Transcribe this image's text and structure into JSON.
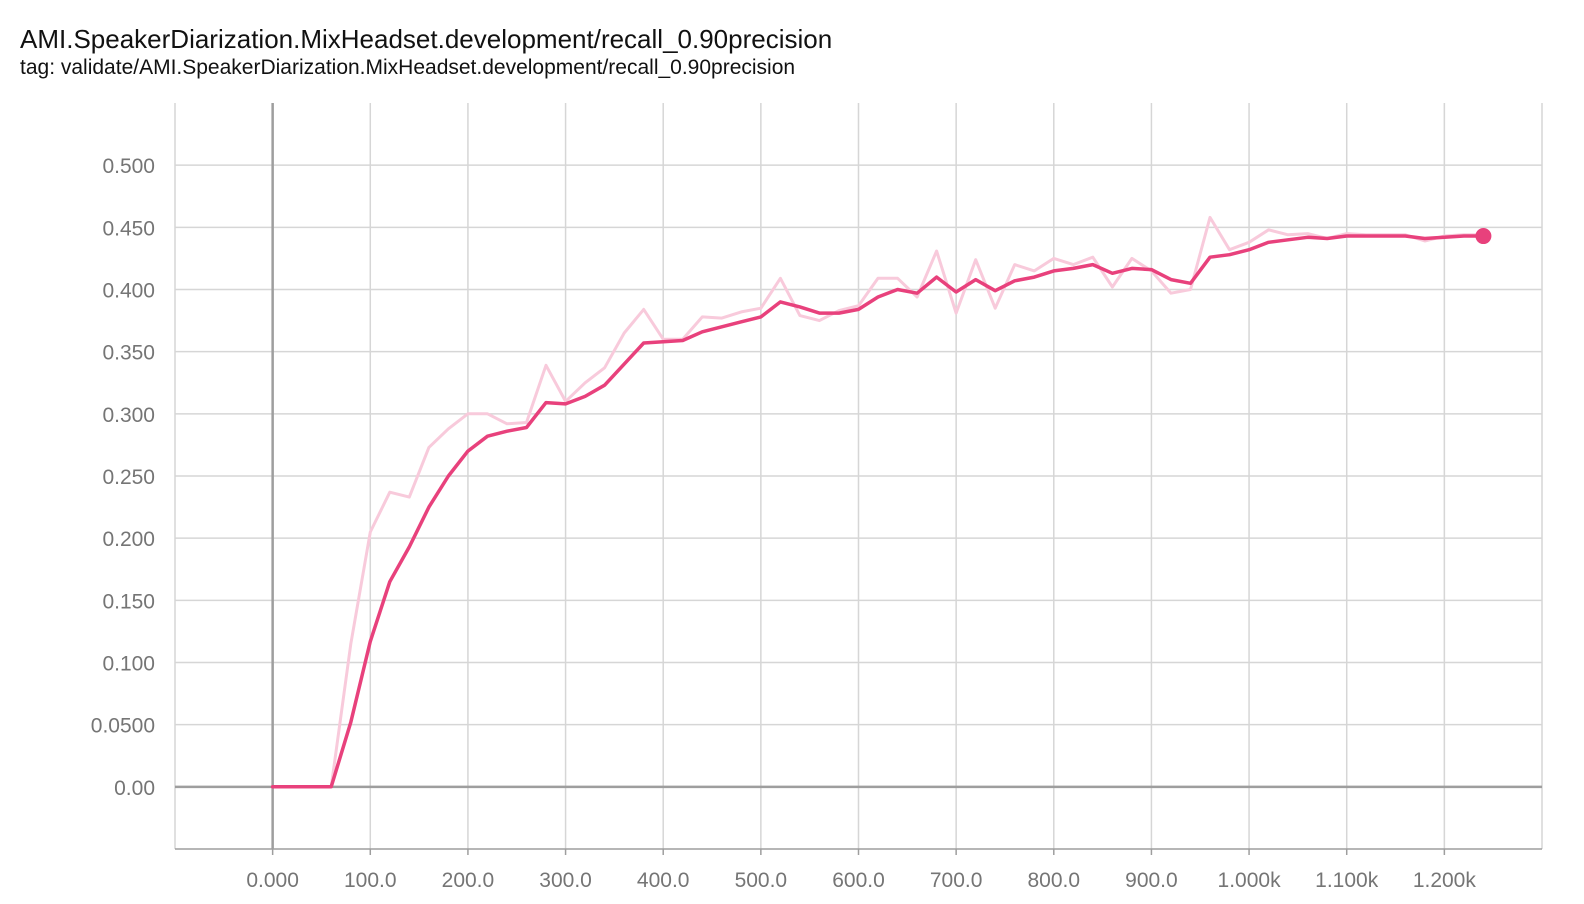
{
  "chart_title": "AMI.SpeakerDiarization.MixHeadset.development/recall_0.90precision",
  "chart_subtitle": "tag: validate/AMI.SpeakerDiarization.MixHeadset.development/recall_0.90precision",
  "colors": {
    "smoothed": "#e8417c",
    "raw": "#f8cadb",
    "grid": "#d6d6d6",
    "axis": "#9e9e9e"
  },
  "chart_data": {
    "type": "line",
    "title": "AMI.SpeakerDiarization.MixHeadset.development/recall_0.90precision",
    "subtitle": "tag: validate/AMI.SpeakerDiarization.MixHeadset.development/recall_0.90precision",
    "xlabel": "",
    "ylabel": "",
    "xlim": [
      -100,
      1300
    ],
    "ylim": [
      -0.05,
      0.55
    ],
    "grid": true,
    "x_ticks": [
      0,
      100,
      200,
      300,
      400,
      500,
      600,
      700,
      800,
      900,
      1000,
      1100,
      1200
    ],
    "x_tick_labels": [
      "0.000",
      "100.0",
      "200.0",
      "300.0",
      "400.0",
      "500.0",
      "600.0",
      "700.0",
      "800.0",
      "900.0",
      "1.000k",
      "1.100k",
      "1.200k"
    ],
    "y_ticks": [
      0,
      0.05,
      0.1,
      0.15,
      0.2,
      0.25,
      0.3,
      0.35,
      0.4,
      0.45,
      0.5
    ],
    "y_tick_labels": [
      "0.00",
      "0.0500",
      "0.100",
      "0.150",
      "0.200",
      "0.250",
      "0.300",
      "0.350",
      "0.400",
      "0.450",
      "0.500"
    ],
    "x": [
      0,
      20,
      40,
      60,
      80,
      100,
      120,
      140,
      160,
      180,
      200,
      220,
      240,
      260,
      280,
      300,
      320,
      340,
      360,
      380,
      400,
      420,
      440,
      460,
      480,
      500,
      520,
      540,
      560,
      580,
      600,
      620,
      640,
      660,
      680,
      700,
      720,
      740,
      760,
      780,
      800,
      820,
      840,
      860,
      880,
      900,
      920,
      940,
      960,
      980,
      1000,
      1020,
      1040,
      1060,
      1080,
      1100,
      1120,
      1140,
      1160,
      1180,
      1200,
      1220,
      1240
    ],
    "series": [
      {
        "role": "raw",
        "values": [
          0,
          0,
          0,
          0,
          0.115,
          0.205,
          0.237,
          0.233,
          0.273,
          0.288,
          0.3,
          0.3,
          0.292,
          0.293,
          0.339,
          0.31,
          0.325,
          0.337,
          0.365,
          0.384,
          0.36,
          0.36,
          0.378,
          0.377,
          0.382,
          0.385,
          0.409,
          0.379,
          0.375,
          0.383,
          0.387,
          0.409,
          0.409,
          0.394,
          0.431,
          0.381,
          0.424,
          0.385,
          0.42,
          0.415,
          0.425,
          0.42,
          0.426,
          0.402,
          0.425,
          0.415,
          0.397,
          0.4,
          0.458,
          0.432,
          0.438,
          0.448,
          0.444,
          0.445,
          0.441,
          0.445,
          0.444,
          0.444,
          0.444,
          0.439,
          0.443,
          0.444,
          0.444
        ]
      },
      {
        "role": "smoothed",
        "values": [
          0,
          0,
          0,
          0,
          0.052,
          0.117,
          0.165,
          0.193,
          0.225,
          0.25,
          0.27,
          0.282,
          0.286,
          0.289,
          0.309,
          0.308,
          0.314,
          0.323,
          0.34,
          0.357,
          0.358,
          0.359,
          0.366,
          0.37,
          0.374,
          0.378,
          0.39,
          0.386,
          0.381,
          0.381,
          0.384,
          0.394,
          0.4,
          0.397,
          0.41,
          0.398,
          0.408,
          0.399,
          0.407,
          0.41,
          0.415,
          0.417,
          0.42,
          0.413,
          0.417,
          0.416,
          0.408,
          0.405,
          0.426,
          0.428,
          0.432,
          0.438,
          0.44,
          0.442,
          0.441,
          0.443,
          0.443,
          0.443,
          0.443,
          0.441,
          0.442,
          0.443,
          0.443
        ]
      }
    ]
  }
}
